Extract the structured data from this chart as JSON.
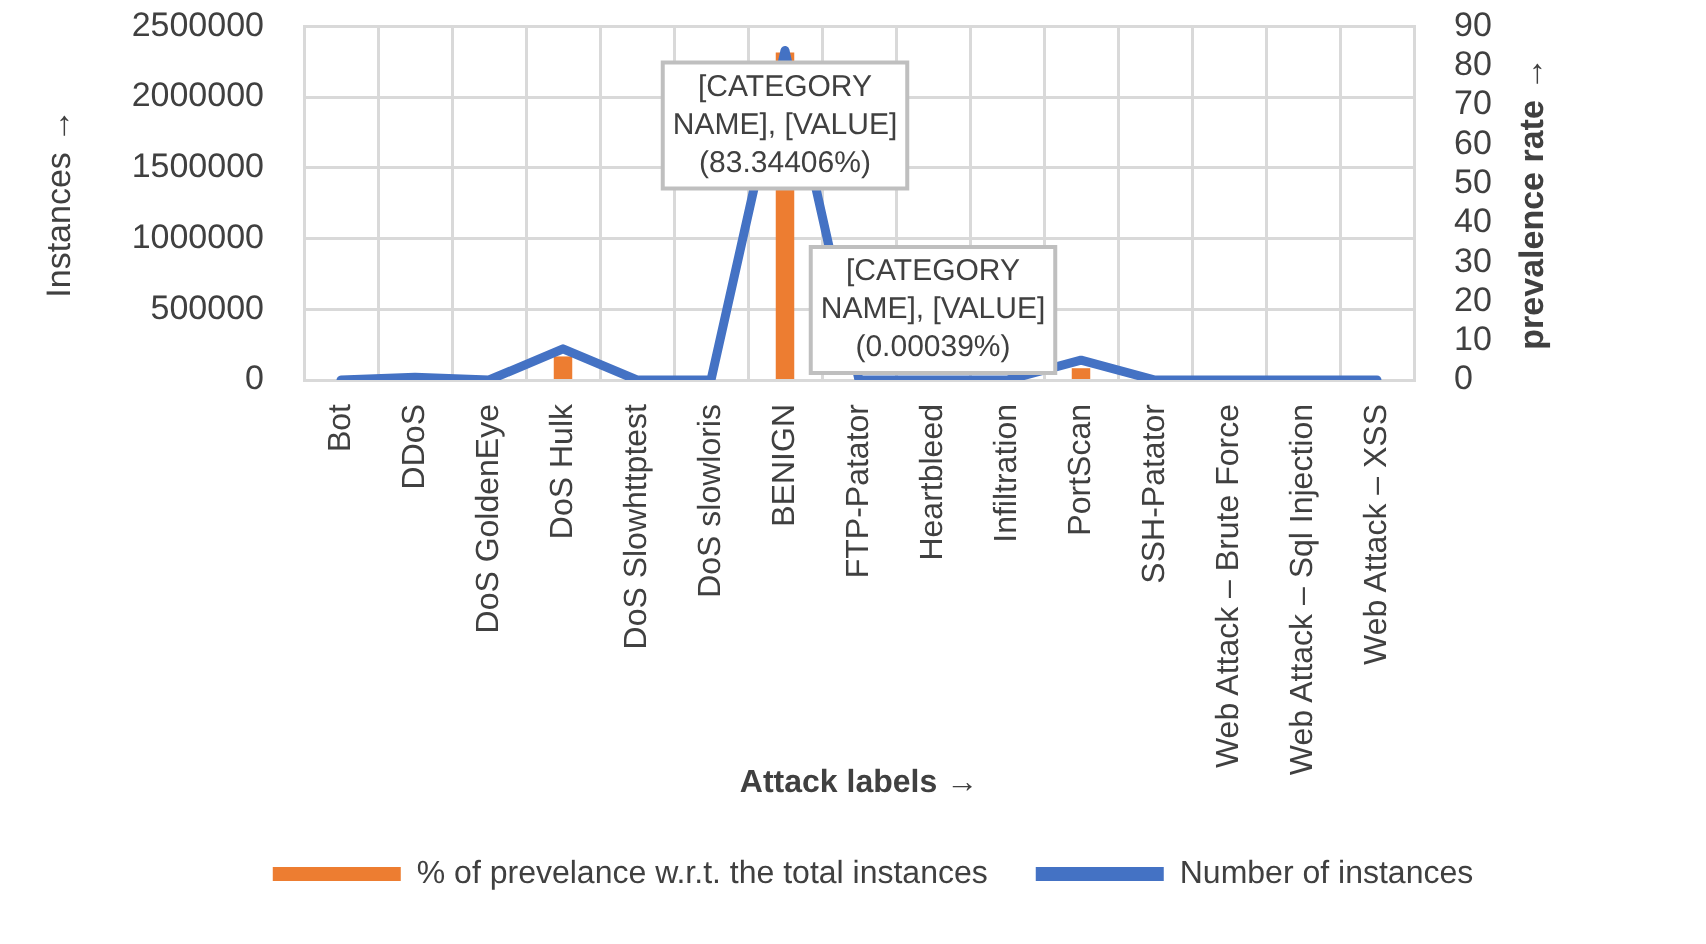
{
  "chart_data": {
    "type": "bar",
    "categories": [
      "Bot",
      "DDoS",
      "DoS GoldenEye",
      "DoS Hulk",
      "DoS Slowhttptest",
      "DoS slowloris",
      "BENIGN",
      "FTP-Patator",
      "Heartbleed",
      "Infiltration",
      "PortScan",
      "SSH-Patator",
      "Web Attack – Brute Force",
      "Web Attack – Sql Injection",
      "Web Attack – XSS"
    ],
    "series": [
      {
        "name": "% of prevelance w.r.t. the total instances",
        "type": "bar",
        "axis": "y2",
        "color": "#ed7d31",
        "values": [
          0,
          0,
          0,
          6,
          0,
          0,
          83.34406,
          0,
          0.00039,
          0,
          3,
          0,
          0,
          0,
          0
        ],
        "value_labels": [
          null,
          null,
          null,
          null,
          null,
          null,
          "[CATEGORY NAME], [VALUE] (83.34406%)",
          null,
          "[CATEGORY NAME], [VALUE] (0.00039%)",
          null,
          null,
          null,
          null,
          null,
          null
        ]
      },
      {
        "name": "Number of instances",
        "type": "line",
        "color": "#4472c4",
        "values": [
          0,
          20000,
          0,
          220000,
          0,
          0,
          2330000,
          0,
          0,
          0,
          140000,
          0,
          0,
          0,
          0
        ]
      }
    ],
    "xlabel": "Attack labels →",
    "ylabel": "Instances →",
    "y2label": "prevalence rate →",
    "ylim": [
      0,
      2500000
    ],
    "yticks": [
      0,
      500000,
      1000000,
      1500000,
      2000000,
      2500000
    ],
    "y2lim": [
      0,
      90
    ],
    "y2ticks": [
      0,
      10,
      20,
      30,
      40,
      50,
      60,
      70,
      80,
      90
    ],
    "grid": true,
    "legend": "bottom"
  }
}
